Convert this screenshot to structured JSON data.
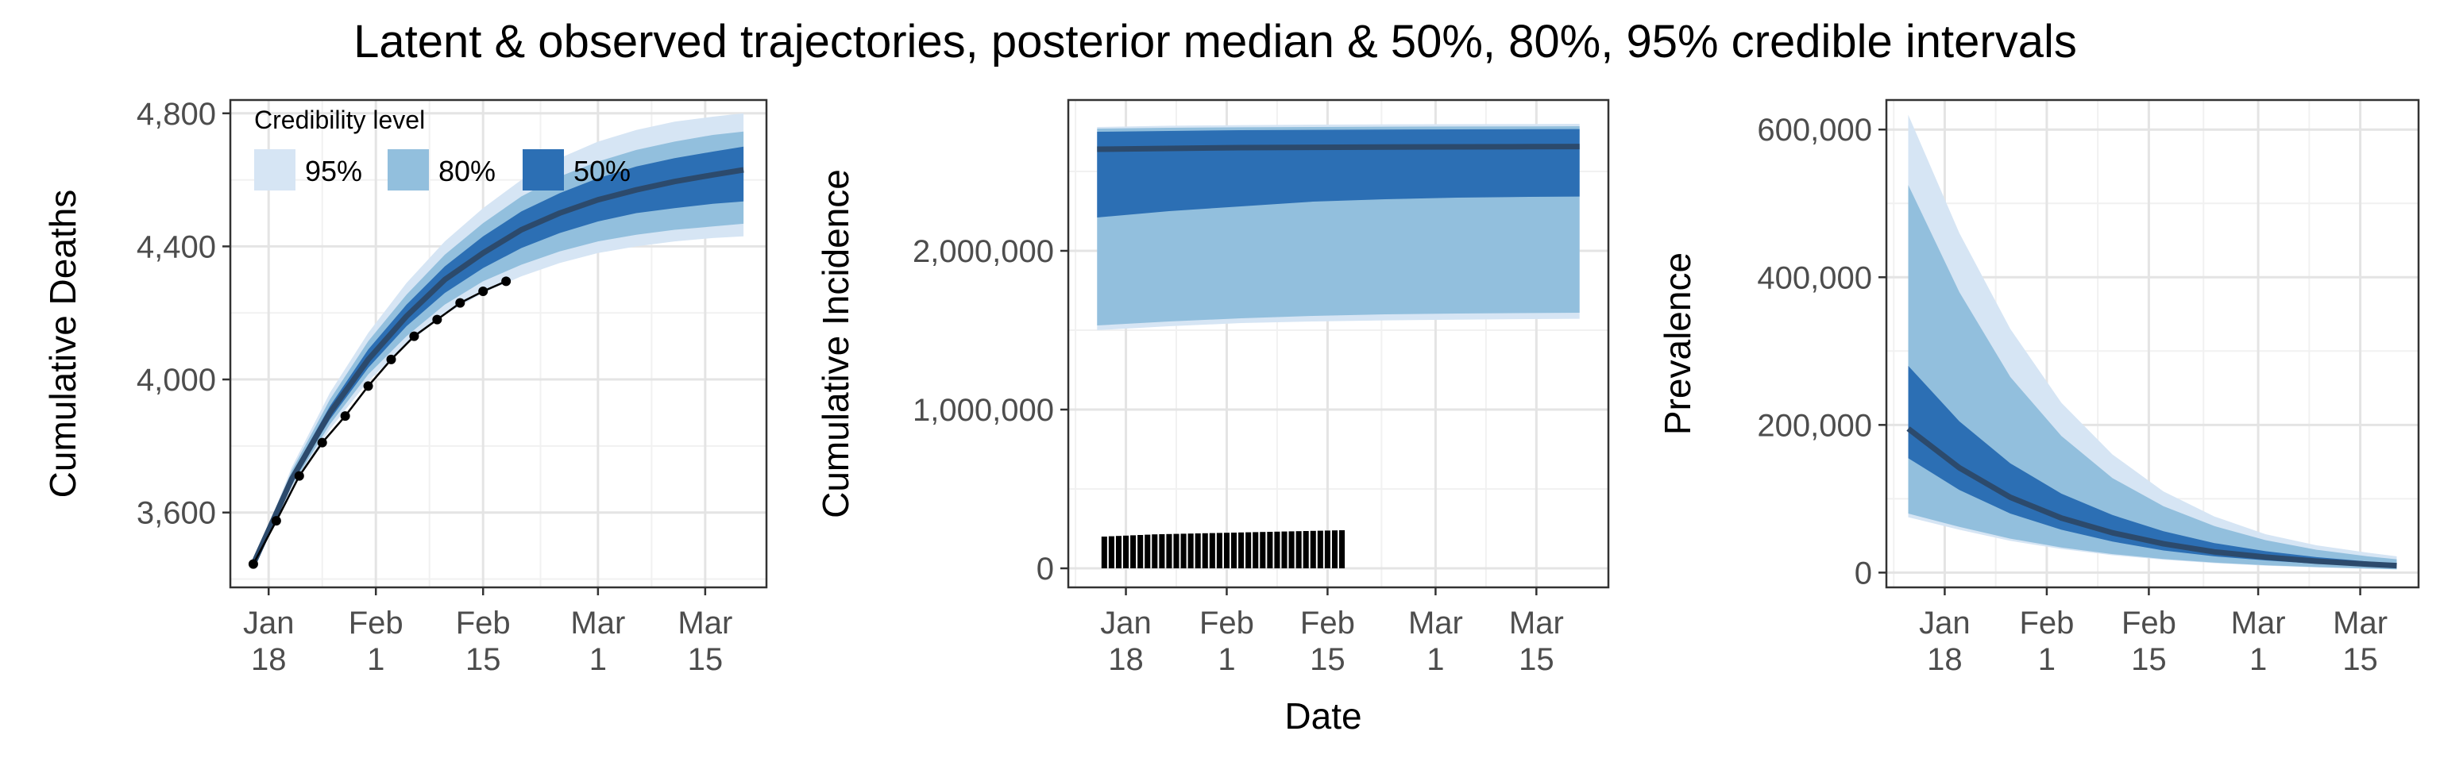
{
  "figure": {
    "title": "Latent & observed trajectories, posterior median & 50%, 80%, 95% credible intervals",
    "xlabel": "Date"
  },
  "colors": {
    "ci95": "#d6e5f4",
    "ci80": "#92bfdd",
    "ci50": "#2c6fb4",
    "median": "#2c4a6c",
    "observed": "#000000",
    "grid_major": "#e4e4e4",
    "grid_minor": "#f1f1f1",
    "axis_text": "#4d4d4d"
  },
  "legend": {
    "title": "Credibility level",
    "items": [
      {
        "label": "95%",
        "key": "ci95"
      },
      {
        "label": "80%",
        "key": "ci80"
      },
      {
        "label": "50%",
        "key": "ci50"
      }
    ]
  },
  "chart_data": [
    {
      "type": "line",
      "ylabel": "Cumulative Deaths",
      "xlim": [
        "2020-01-13",
        "2020-03-23"
      ],
      "ylim": [
        3375,
        4840
      ],
      "x_ticks": [
        {
          "date": "2020-01-18",
          "line1": "Jan",
          "line2": "18"
        },
        {
          "date": "2020-02-01",
          "line1": "Feb",
          "line2": "1"
        },
        {
          "date": "2020-02-15",
          "line1": "Feb",
          "line2": "15"
        },
        {
          "date": "2020-03-01",
          "line1": "Mar",
          "line2": "1"
        },
        {
          "date": "2020-03-15",
          "line1": "Mar",
          "line2": "15"
        }
      ],
      "y_ticks": [
        {
          "value": 3600,
          "label": "3,600"
        },
        {
          "value": 4000,
          "label": "4,000"
        },
        {
          "value": 4400,
          "label": "4,400"
        },
        {
          "value": 4800,
          "label": "4,800"
        }
      ],
      "legend_position": "top-left",
      "latent": {
        "x": [
          "2020-01-16",
          "2020-01-21",
          "2020-01-26",
          "2020-01-31",
          "2020-02-05",
          "2020-02-10",
          "2020-02-15",
          "2020-02-20",
          "2020-02-25",
          "2020-03-01",
          "2020-03-06",
          "2020-03-11",
          "2020-03-16",
          "2020-03-20"
        ],
        "median": [
          3445,
          3700,
          3900,
          4060,
          4190,
          4300,
          4380,
          4450,
          4500,
          4540,
          4570,
          4595,
          4615,
          4630
        ],
        "lo50": [
          3445,
          3690,
          3880,
          4035,
          4160,
          4260,
          4335,
          4395,
          4440,
          4475,
          4500,
          4515,
          4528,
          4535
        ],
        "hi50": [
          3445,
          3715,
          3920,
          4090,
          4225,
          4340,
          4430,
          4505,
          4560,
          4605,
          4640,
          4665,
          4685,
          4700
        ],
        "lo80": [
          3445,
          3680,
          3865,
          4015,
          4130,
          4225,
          4295,
          4345,
          4385,
          4415,
          4435,
          4450,
          4460,
          4468
        ],
        "hi80": [
          3445,
          3725,
          3940,
          4115,
          4255,
          4375,
          4470,
          4550,
          4610,
          4655,
          4690,
          4715,
          4735,
          4745
        ],
        "lo95": [
          3445,
          3670,
          3850,
          3995,
          4105,
          4195,
          4260,
          4310,
          4350,
          4380,
          4400,
          4415,
          4425,
          4430
        ],
        "hi95": [
          3445,
          3735,
          3960,
          4140,
          4290,
          4415,
          4515,
          4600,
          4665,
          4715,
          4750,
          4775,
          4790,
          4800
        ]
      },
      "observed": {
        "x": [
          "2020-01-16",
          "2020-01-19",
          "2020-01-22",
          "2020-01-25",
          "2020-01-28",
          "2020-01-31",
          "2020-02-03",
          "2020-02-06",
          "2020-02-09",
          "2020-02-12",
          "2020-02-15",
          "2020-02-18"
        ],
        "y": [
          3445,
          3575,
          3710,
          3810,
          3890,
          3980,
          4060,
          4130,
          4180,
          4230,
          4265,
          4295
        ]
      }
    },
    {
      "type": "line",
      "ylabel": "Cumulative Incidence",
      "xlim": [
        "2020-01-10",
        "2020-03-25"
      ],
      "ylim": [
        -120000,
        2950000
      ],
      "x_ticks": [
        {
          "date": "2020-01-18",
          "line1": "Jan",
          "line2": "18"
        },
        {
          "date": "2020-02-01",
          "line1": "Feb",
          "line2": "1"
        },
        {
          "date": "2020-02-15",
          "line1": "Feb",
          "line2": "15"
        },
        {
          "date": "2020-03-01",
          "line1": "Mar",
          "line2": "1"
        },
        {
          "date": "2020-03-15",
          "line1": "Mar",
          "line2": "15"
        }
      ],
      "y_ticks": [
        {
          "value": 0,
          "label": "0"
        },
        {
          "value": 1000000,
          "label": "1,000,000"
        },
        {
          "value": 2000000,
          "label": "2,000,000"
        }
      ],
      "latent": {
        "x": [
          "2020-01-14",
          "2020-01-24",
          "2020-02-03",
          "2020-02-13",
          "2020-02-23",
          "2020-03-04",
          "2020-03-14",
          "2020-03-21"
        ],
        "median": [
          2640000,
          2645000,
          2650000,
          2652000,
          2654000,
          2655000,
          2656000,
          2657000
        ],
        "lo50": [
          2210000,
          2250000,
          2280000,
          2310000,
          2325000,
          2335000,
          2340000,
          2342000
        ],
        "hi50": [
          2750000,
          2755000,
          2760000,
          2762000,
          2764000,
          2765000,
          2766000,
          2767000
        ],
        "lo80": [
          1530000,
          1555000,
          1575000,
          1590000,
          1600000,
          1605000,
          1608000,
          1610000
        ],
        "hi80": [
          2770000,
          2775000,
          2778000,
          2780000,
          2782000,
          2783000,
          2784000,
          2785000
        ],
        "lo95": [
          1500000,
          1525000,
          1545000,
          1555000,
          1562000,
          1566000,
          1570000,
          1572000
        ],
        "hi95": [
          2780000,
          2788000,
          2792000,
          2795000,
          2797000,
          2798000,
          2799000,
          2800000
        ]
      },
      "observed_bars": {
        "x": [
          "2020-01-15",
          "2020-01-16",
          "2020-01-17",
          "2020-01-18",
          "2020-01-19",
          "2020-01-20",
          "2020-01-21",
          "2020-01-22",
          "2020-01-23",
          "2020-01-24",
          "2020-01-25",
          "2020-01-26",
          "2020-01-27",
          "2020-01-28",
          "2020-01-29",
          "2020-01-30",
          "2020-01-31",
          "2020-02-01",
          "2020-02-02",
          "2020-02-03",
          "2020-02-04",
          "2020-02-05",
          "2020-02-06",
          "2020-02-07",
          "2020-02-08",
          "2020-02-09",
          "2020-02-10",
          "2020-02-11",
          "2020-02-12",
          "2020-02-13",
          "2020-02-14",
          "2020-02-15",
          "2020-02-16",
          "2020-02-17"
        ],
        "y": [
          200000,
          202000,
          204000,
          206000,
          208000,
          210000,
          212000,
          214000,
          215000,
          216000,
          217000,
          218000,
          219000,
          220000,
          221000,
          222000,
          223000,
          224000,
          225000,
          226000,
          227000,
          228000,
          229000,
          230000,
          231000,
          232000,
          233000,
          234000,
          235000,
          236000,
          237000,
          238000,
          239000,
          240000
        ]
      }
    },
    {
      "type": "line",
      "ylabel": "Prevalence",
      "xlim": [
        "2020-01-10",
        "2020-03-23"
      ],
      "ylim": [
        -20000,
        640000
      ],
      "x_ticks": [
        {
          "date": "2020-01-18",
          "line1": "Jan",
          "line2": "18"
        },
        {
          "date": "2020-02-01",
          "line1": "Feb",
          "line2": "1"
        },
        {
          "date": "2020-02-15",
          "line1": "Feb",
          "line2": "15"
        },
        {
          "date": "2020-03-01",
          "line1": "Mar",
          "line2": "1"
        },
        {
          "date": "2020-03-15",
          "line1": "Mar",
          "line2": "15"
        }
      ],
      "y_ticks": [
        {
          "value": 0,
          "label": "0"
        },
        {
          "value": 200000,
          "label": "200,000"
        },
        {
          "value": 400000,
          "label": "400,000"
        },
        {
          "value": 600000,
          "label": "600,000"
        }
      ],
      "latent": {
        "x": [
          "2020-01-13",
          "2020-01-20",
          "2020-01-27",
          "2020-02-03",
          "2020-02-10",
          "2020-02-17",
          "2020-02-24",
          "2020-03-02",
          "2020-03-09",
          "2020-03-16",
          "2020-03-20"
        ],
        "median": [
          195000,
          142000,
          102000,
          74000,
          54000,
          39000,
          28000,
          21000,
          15500,
          11500,
          9500
        ],
        "lo50": [
          155000,
          112000,
          80000,
          58000,
          42000,
          30000,
          22000,
          16500,
          12000,
          9000,
          7500
        ],
        "hi50": [
          280000,
          205000,
          148000,
          107000,
          78000,
          56000,
          40000,
          29000,
          21000,
          15000,
          12500
        ],
        "lo80": [
          80000,
          62000,
          46000,
          34000,
          25000,
          18500,
          13500,
          10000,
          7500,
          5500,
          4500
        ],
        "hi80": [
          525000,
          380000,
          265000,
          185000,
          128000,
          90000,
          63000,
          44000,
          31000,
          22000,
          18000
        ],
        "lo95": [
          75000,
          58000,
          43000,
          32000,
          23500,
          17500,
          12800,
          9500,
          7000,
          5200,
          4300
        ],
        "hi95": [
          620000,
          460000,
          330000,
          230000,
          160000,
          110000,
          76000,
          52000,
          37000,
          27000,
          22000
        ]
      }
    }
  ]
}
